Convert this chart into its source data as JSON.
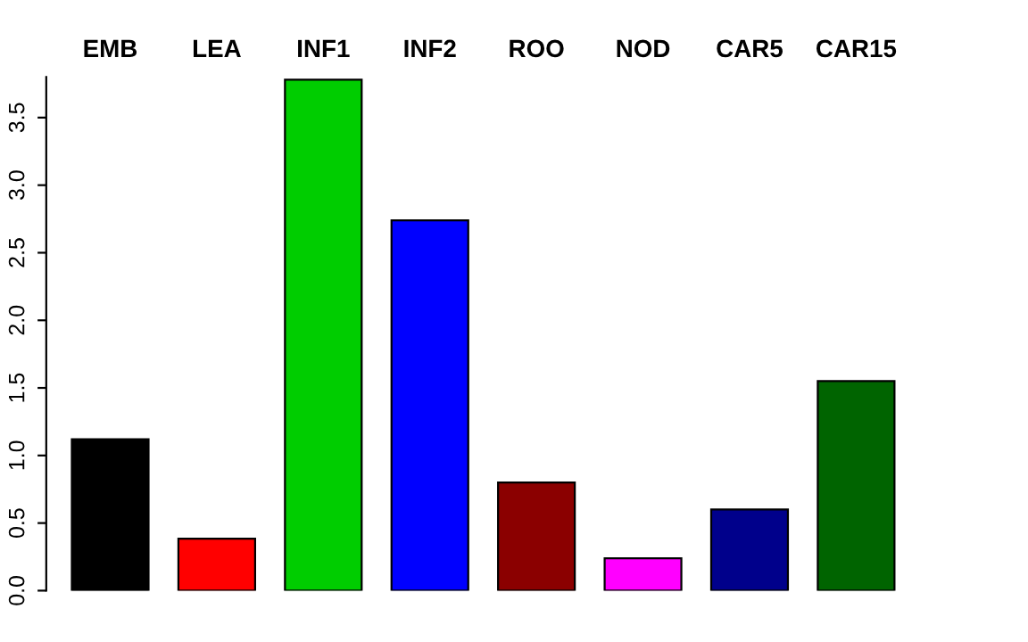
{
  "chart_data": {
    "type": "bar",
    "categories": [
      "EMB",
      "LEA",
      "INF1",
      "INF2",
      "ROO",
      "NOD",
      "CAR5",
      "CAR15"
    ],
    "values": [
      1.12,
      0.385,
      3.78,
      2.74,
      0.8,
      0.24,
      0.6,
      1.55
    ],
    "colors": [
      "#000000",
      "#ff0000",
      "#00cd00",
      "#0000ff",
      "#8b0000",
      "#ff00ff",
      "#00008b",
      "#006400"
    ],
    "ylim": [
      0,
      3.8
    ],
    "yticks": [
      {
        "value": 0,
        "label": "0.0"
      },
      {
        "value": 0.5,
        "label": "0.5"
      },
      {
        "value": 1,
        "label": "1.0"
      },
      {
        "value": 1.5,
        "label": "1.5"
      },
      {
        "value": 2,
        "label": "2.0"
      },
      {
        "value": 2.5,
        "label": "2.5"
      },
      {
        "value": 3,
        "label": "3.0"
      },
      {
        "value": 3.5,
        "label": "3.5"
      }
    ],
    "grid": false
  }
}
